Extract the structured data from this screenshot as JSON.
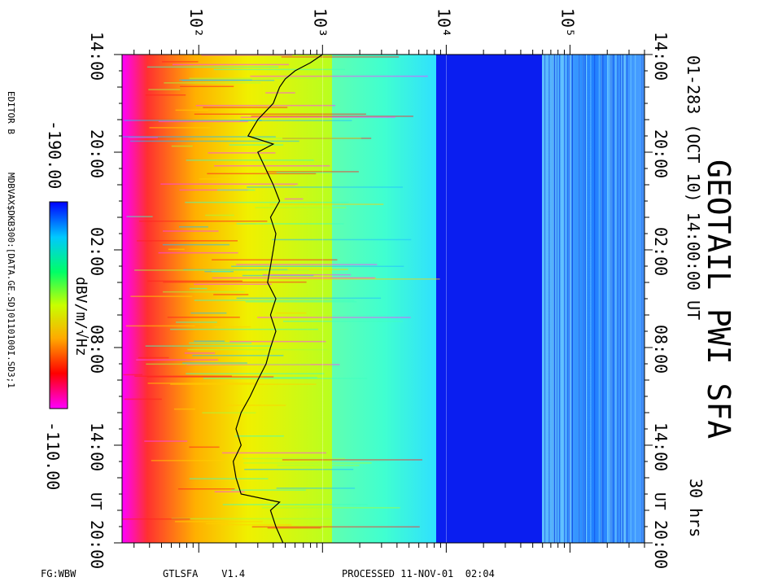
{
  "chart_data": {
    "type": "heatmap",
    "title": "GEOTAIL PWI SFA",
    "subtitle": "01-283 (OCT 10) 14:00:00 UT",
    "duration_label": "30 hrs",
    "ylabel": "",
    "y_axis_prefix": "UT",
    "y_ticks": [
      "14:00",
      "20:00",
      "02:00",
      "08:00",
      "14:00",
      "20:00"
    ],
    "y_range_hours": [
      0,
      30
    ],
    "x_scale": "log",
    "x_ticks": [
      "10²",
      "10³",
      "10⁴",
      "10⁵"
    ],
    "x_tick_values": [
      100,
      1000,
      10000,
      100000
    ],
    "x_range_hz": [
      24,
      400000
    ],
    "colorbar": {
      "label": "dBV/m/√Hz",
      "min_label": "-190.00",
      "max_label": "-110.00",
      "colors": [
        "#0000ff",
        "#00c8ff",
        "#00ff66",
        "#c8ff00",
        "#ffaa00",
        "#ff0000",
        "#ff00ff"
      ]
    },
    "band_boundaries_hz": [
      1000,
      10000,
      100000
    ],
    "overlay_trace": {
      "name": "",
      "color": "#000000",
      "points_hz_vs_hour": [
        [
          1000,
          0
        ],
        [
          800,
          0.5
        ],
        [
          600,
          1
        ],
        [
          500,
          1.5
        ],
        [
          450,
          2
        ],
        [
          400,
          3
        ],
        [
          300,
          4
        ],
        [
          250,
          5
        ],
        [
          400,
          5.5
        ],
        [
          300,
          6
        ],
        [
          400,
          8
        ],
        [
          450,
          9
        ],
        [
          380,
          10
        ],
        [
          420,
          11
        ],
        [
          400,
          12
        ],
        [
          380,
          13
        ],
        [
          360,
          14
        ],
        [
          420,
          15
        ],
        [
          380,
          16
        ],
        [
          420,
          17
        ],
        [
          380,
          18
        ],
        [
          350,
          19
        ],
        [
          300,
          20
        ],
        [
          260,
          21
        ],
        [
          220,
          22
        ],
        [
          200,
          23
        ],
        [
          220,
          24
        ],
        [
          190,
          25
        ],
        [
          200,
          26
        ],
        [
          220,
          27
        ],
        [
          450,
          27.5
        ],
        [
          380,
          28
        ],
        [
          420,
          29
        ],
        [
          480,
          30
        ]
      ]
    }
  },
  "footer": {
    "left": "FG:WBW",
    "version": "GTLSFA    V1.4",
    "processed": "PROCESSED 11-NOV-01  02:04"
  },
  "side": {
    "editor": "EDITOR B",
    "path": "MDBVAX$DKB300:[DATA.GE.SD]0110100I.SD3;1"
  }
}
